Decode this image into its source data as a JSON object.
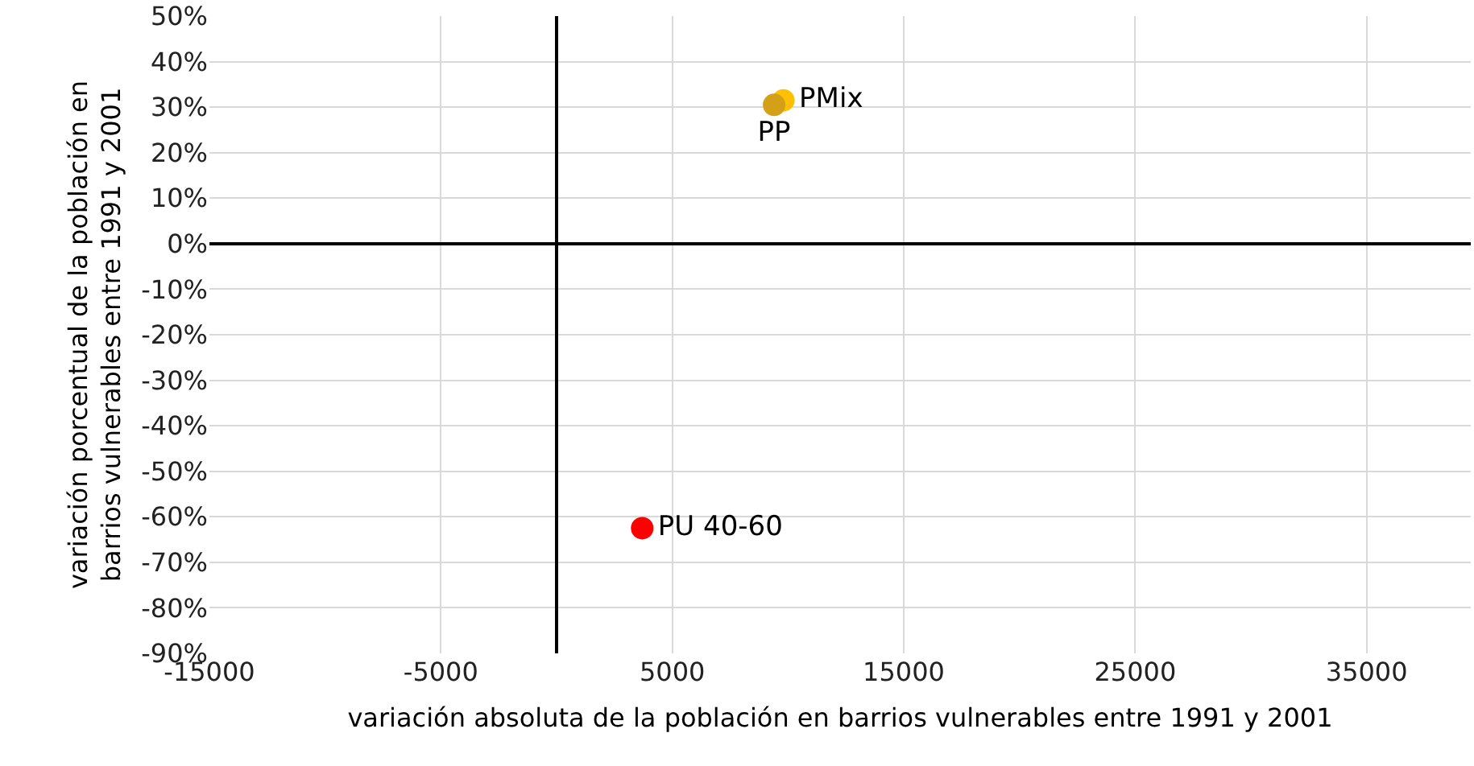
{
  "chart_data": {
    "type": "scatter",
    "xlabel": "variación absoluta de la población en barrios vulnerables entre 1991 y 2001",
    "ylabel": "variación porcentual de la población en\nbarrios vulnerables entre 1991 y 2001",
    "series": [
      {
        "name": "PMix",
        "color": "#ffc000",
        "x": [
          9800
        ],
        "values": [
          31.5
        ]
      },
      {
        "name": "PP",
        "color": "#d4a017",
        "x": [
          9400
        ],
        "values": [
          30.5
        ]
      },
      {
        "name": "PU 40-60",
        "color": "#ff0000",
        "x": [
          3700
        ],
        "values": [
          -62.5
        ]
      }
    ],
    "xlim": [
      -15000,
      39500
    ],
    "xticks": [
      -15000,
      -5000,
      5000,
      15000,
      25000,
      35000
    ],
    "ylim": [
      -90,
      50
    ],
    "yticks": [
      {
        "value": -90,
        "label": "-90%"
      },
      {
        "value": -80,
        "label": "-80%"
      },
      {
        "value": -70,
        "label": "-70%"
      },
      {
        "value": -60,
        "label": "-60%"
      },
      {
        "value": -50,
        "label": "-50%"
      },
      {
        "value": -40,
        "label": "-40%"
      },
      {
        "value": -30,
        "label": "-30%"
      },
      {
        "value": -20,
        "label": "-20%"
      },
      {
        "value": -10,
        "label": "-10%"
      },
      {
        "value": 0,
        "label": "0%"
      },
      {
        "value": 10,
        "label": "10%"
      },
      {
        "value": 20,
        "label": "20%"
      },
      {
        "value": 30,
        "label": "30%"
      },
      {
        "value": 40,
        "label": "40%"
      },
      {
        "value": 50,
        "label": "50%"
      }
    ],
    "grid": true,
    "legend": false,
    "marker": "circle"
  }
}
